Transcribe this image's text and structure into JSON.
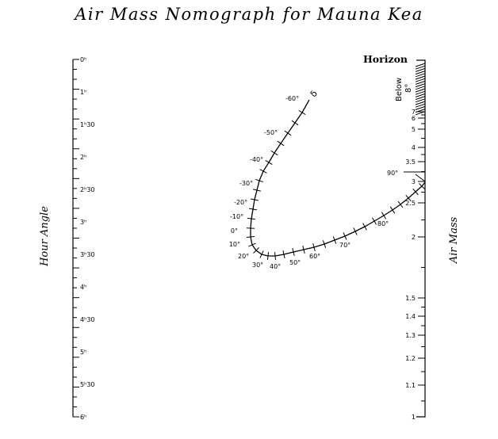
{
  "title": "Air Mass Nomograph for Mauna Kea",
  "hour_angle_scale": {
    "title": "Hour Angle",
    "labels": [
      "0ʰ",
      "1ʰ",
      "1ʰ30",
      "2ʰ",
      "2ʰ30",
      "3ʰ",
      "3ʰ30",
      "4ʰ",
      "4ʰ30",
      "5ʰ",
      "5ʰ30",
      "6ʰ"
    ]
  },
  "air_mass_scale": {
    "title": "Air Mass",
    "horizon_label": "Horizon",
    "below_label": "Below",
    "below_value": "8°",
    "labels": [
      "7",
      "6",
      "5",
      "4",
      "3.5",
      "3",
      "2.5",
      "2",
      "1.5",
      "1.4",
      "1.3",
      "1.2",
      "1.1",
      "1"
    ]
  },
  "declination_curve": {
    "labels": [
      "-60°",
      "-50°",
      "-40°",
      "-30°",
      "-20°",
      "-10°",
      "0°",
      "10°",
      "20°",
      "30°",
      "40°",
      "50°",
      "60°",
      "70°",
      "80°",
      "90°"
    ],
    "end_symbol": "δ"
  }
}
